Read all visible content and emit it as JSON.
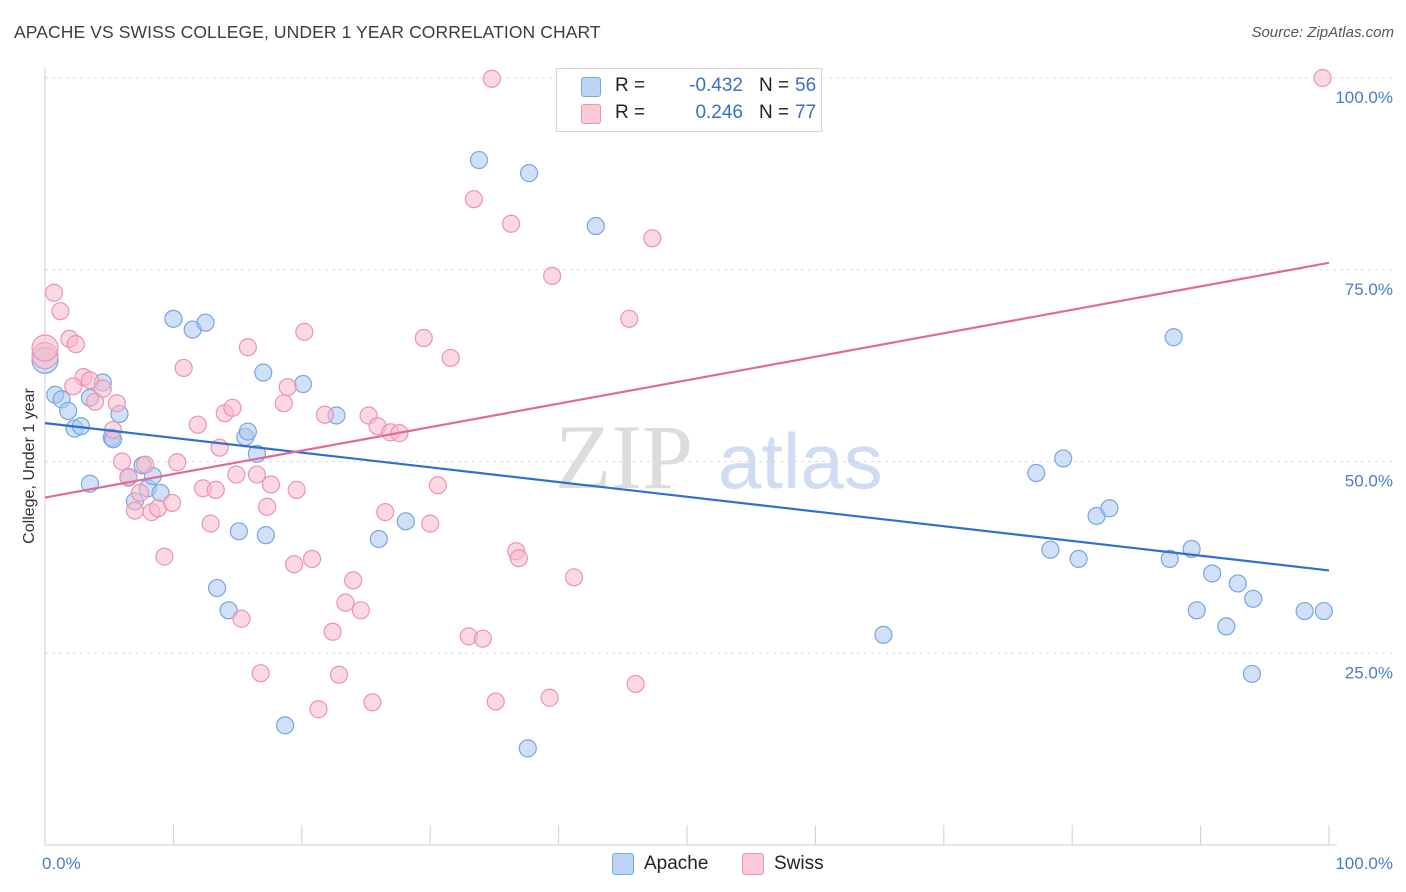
{
  "header": {
    "title": "APACHE VS SWISS COLLEGE, UNDER 1 YEAR CORRELATION CHART",
    "source": "Source: ZipAtlas.com"
  },
  "watermark": {
    "zip": "ZIP",
    "atlas": "atlas"
  },
  "legend": {
    "series": [
      {
        "name": "Apache",
        "r_label": "R =",
        "r_value": "-0.432",
        "n_label": "N =",
        "n_value": "56"
      },
      {
        "name": "Swiss",
        "r_label": "R =",
        "r_value": "0.246",
        "n_label": "N =",
        "n_value": "77"
      }
    ]
  },
  "chart_data": {
    "type": "scatter",
    "title": "APACHE VS SWISS COLLEGE, UNDER 1 YEAR CORRELATION CHART",
    "xlabel": "",
    "ylabel": "College, Under 1 year",
    "xlim": [
      0,
      100
    ],
    "ylim": [
      0,
      100
    ],
    "x_tick_labels": [
      "0.0%",
      "100.0%"
    ],
    "y_tick_labels": [
      {
        "value": 25,
        "label": "25.0%"
      },
      {
        "value": 50,
        "label": "50.0%"
      },
      {
        "value": 75,
        "label": "75.0%"
      },
      {
        "value": 100,
        "label": "100.0%"
      }
    ],
    "grid": true,
    "legend_position": "top-center",
    "colors": {
      "Apache": {
        "fill": "#a9c6ef",
        "stroke": "#7aa6df",
        "line": "#2f6fce"
      },
      "Swiss": {
        "fill": "#f7b8cb",
        "stroke": "#ec94b1",
        "line": "#e06a95"
      }
    },
    "series": [
      {
        "name": "Apache",
        "trend": {
          "x": [
            0,
            100
          ],
          "y": [
            55.0,
            35.8
          ]
        },
        "points": [
          [
            0.0,
            63.2
          ],
          [
            0.8,
            58.7
          ],
          [
            1.3,
            58.1
          ],
          [
            1.8,
            56.6
          ],
          [
            2.3,
            54.3
          ],
          [
            2.8,
            54.6
          ],
          [
            3.5,
            47.1
          ],
          [
            3.5,
            58.3
          ],
          [
            4.5,
            60.3
          ],
          [
            5.2,
            53.1
          ],
          [
            5.3,
            52.9
          ],
          [
            5.8,
            56.2
          ],
          [
            6.5,
            47.9
          ],
          [
            7.0,
            44.8
          ],
          [
            7.6,
            49.5
          ],
          [
            8.0,
            46.5
          ],
          [
            8.4,
            48.1
          ],
          [
            9.0,
            45.9
          ],
          [
            10.0,
            68.6
          ],
          [
            11.5,
            67.2
          ],
          [
            12.5,
            68.1
          ],
          [
            13.4,
            33.5
          ],
          [
            14.3,
            30.6
          ],
          [
            15.1,
            40.9
          ],
          [
            15.6,
            53.2
          ],
          [
            15.8,
            53.9
          ],
          [
            16.5,
            51.0
          ],
          [
            17.0,
            61.6
          ],
          [
            17.2,
            40.4
          ],
          [
            18.7,
            15.6
          ],
          [
            20.1,
            60.1
          ],
          [
            22.7,
            56.0
          ],
          [
            26.0,
            39.9
          ],
          [
            28.1,
            42.2
          ],
          [
            33.8,
            89.3
          ],
          [
            37.6,
            12.6
          ],
          [
            37.7,
            87.6
          ],
          [
            42.9,
            80.7
          ],
          [
            65.3,
            27.4
          ],
          [
            77.2,
            48.5
          ],
          [
            78.3,
            38.5
          ],
          [
            79.3,
            50.4
          ],
          [
            80.5,
            37.3
          ],
          [
            81.9,
            42.9
          ],
          [
            82.9,
            43.9
          ],
          [
            87.6,
            37.3
          ],
          [
            87.9,
            66.2
          ],
          [
            89.3,
            38.6
          ],
          [
            89.7,
            30.6
          ],
          [
            90.9,
            35.4
          ],
          [
            92.0,
            28.5
          ],
          [
            92.9,
            34.1
          ],
          [
            94.0,
            22.3
          ],
          [
            94.1,
            32.1
          ],
          [
            98.1,
            30.5
          ],
          [
            99.6,
            30.5
          ]
        ]
      },
      {
        "name": "Swiss",
        "trend": {
          "x": [
            0,
            100
          ],
          "y": [
            45.3,
            75.9
          ]
        },
        "points": [
          [
            0.0,
            63.8
          ],
          [
            0.7,
            72.0
          ],
          [
            1.2,
            69.6
          ],
          [
            1.9,
            66.0
          ],
          [
            2.4,
            65.3
          ],
          [
            3.0,
            61.0
          ],
          [
            3.5,
            60.6
          ],
          [
            3.9,
            57.8
          ],
          [
            4.5,
            59.5
          ],
          [
            5.3,
            54.1
          ],
          [
            5.6,
            57.6
          ],
          [
            6.0,
            50.0
          ],
          [
            6.5,
            48.0
          ],
          [
            7.0,
            43.6
          ],
          [
            7.4,
            45.9
          ],
          [
            7.8,
            49.6
          ],
          [
            8.3,
            43.4
          ],
          [
            8.8,
            43.9
          ],
          [
            9.3,
            37.6
          ],
          [
            9.9,
            44.6
          ],
          [
            10.3,
            49.9
          ],
          [
            10.8,
            62.2
          ],
          [
            11.9,
            54.8
          ],
          [
            12.3,
            46.5
          ],
          [
            12.9,
            41.9
          ],
          [
            13.3,
            46.3
          ],
          [
            13.6,
            51.8
          ],
          [
            14.0,
            56.3
          ],
          [
            14.6,
            57.0
          ],
          [
            14.9,
            48.3
          ],
          [
            15.3,
            29.5
          ],
          [
            15.8,
            64.9
          ],
          [
            16.5,
            48.3
          ],
          [
            16.8,
            22.4
          ],
          [
            17.3,
            44.1
          ],
          [
            17.6,
            47.0
          ],
          [
            18.6,
            57.6
          ],
          [
            18.9,
            59.7
          ],
          [
            19.4,
            36.6
          ],
          [
            19.6,
            46.3
          ],
          [
            20.2,
            66.9
          ],
          [
            20.8,
            37.3
          ],
          [
            21.3,
            17.7
          ],
          [
            21.8,
            56.1
          ],
          [
            22.4,
            27.8
          ],
          [
            22.9,
            22.2
          ],
          [
            23.4,
            31.6
          ],
          [
            24.0,
            34.5
          ],
          [
            24.6,
            30.6
          ],
          [
            25.2,
            56.0
          ],
          [
            25.5,
            18.6
          ],
          [
            25.9,
            54.6
          ],
          [
            26.5,
            43.4
          ],
          [
            26.9,
            53.8
          ],
          [
            27.6,
            53.7
          ],
          [
            29.5,
            66.1
          ],
          [
            30.0,
            41.9
          ],
          [
            30.6,
            46.9
          ],
          [
            31.6,
            63.5
          ],
          [
            33.0,
            27.2
          ],
          [
            33.4,
            84.2
          ],
          [
            34.1,
            26.9
          ],
          [
            34.8,
            99.9
          ],
          [
            35.1,
            18.7
          ],
          [
            36.3,
            81.0
          ],
          [
            36.7,
            38.3
          ],
          [
            36.9,
            37.4
          ],
          [
            39.3,
            19.2
          ],
          [
            39.5,
            74.2
          ],
          [
            41.2,
            34.9
          ],
          [
            45.5,
            68.6
          ],
          [
            46.0,
            21.0
          ],
          [
            47.3,
            79.1
          ],
          [
            52.4,
            100.0
          ],
          [
            99.5,
            100.0
          ],
          [
            0.0,
            64.8
          ],
          [
            2.2,
            59.8
          ]
        ]
      }
    ]
  }
}
